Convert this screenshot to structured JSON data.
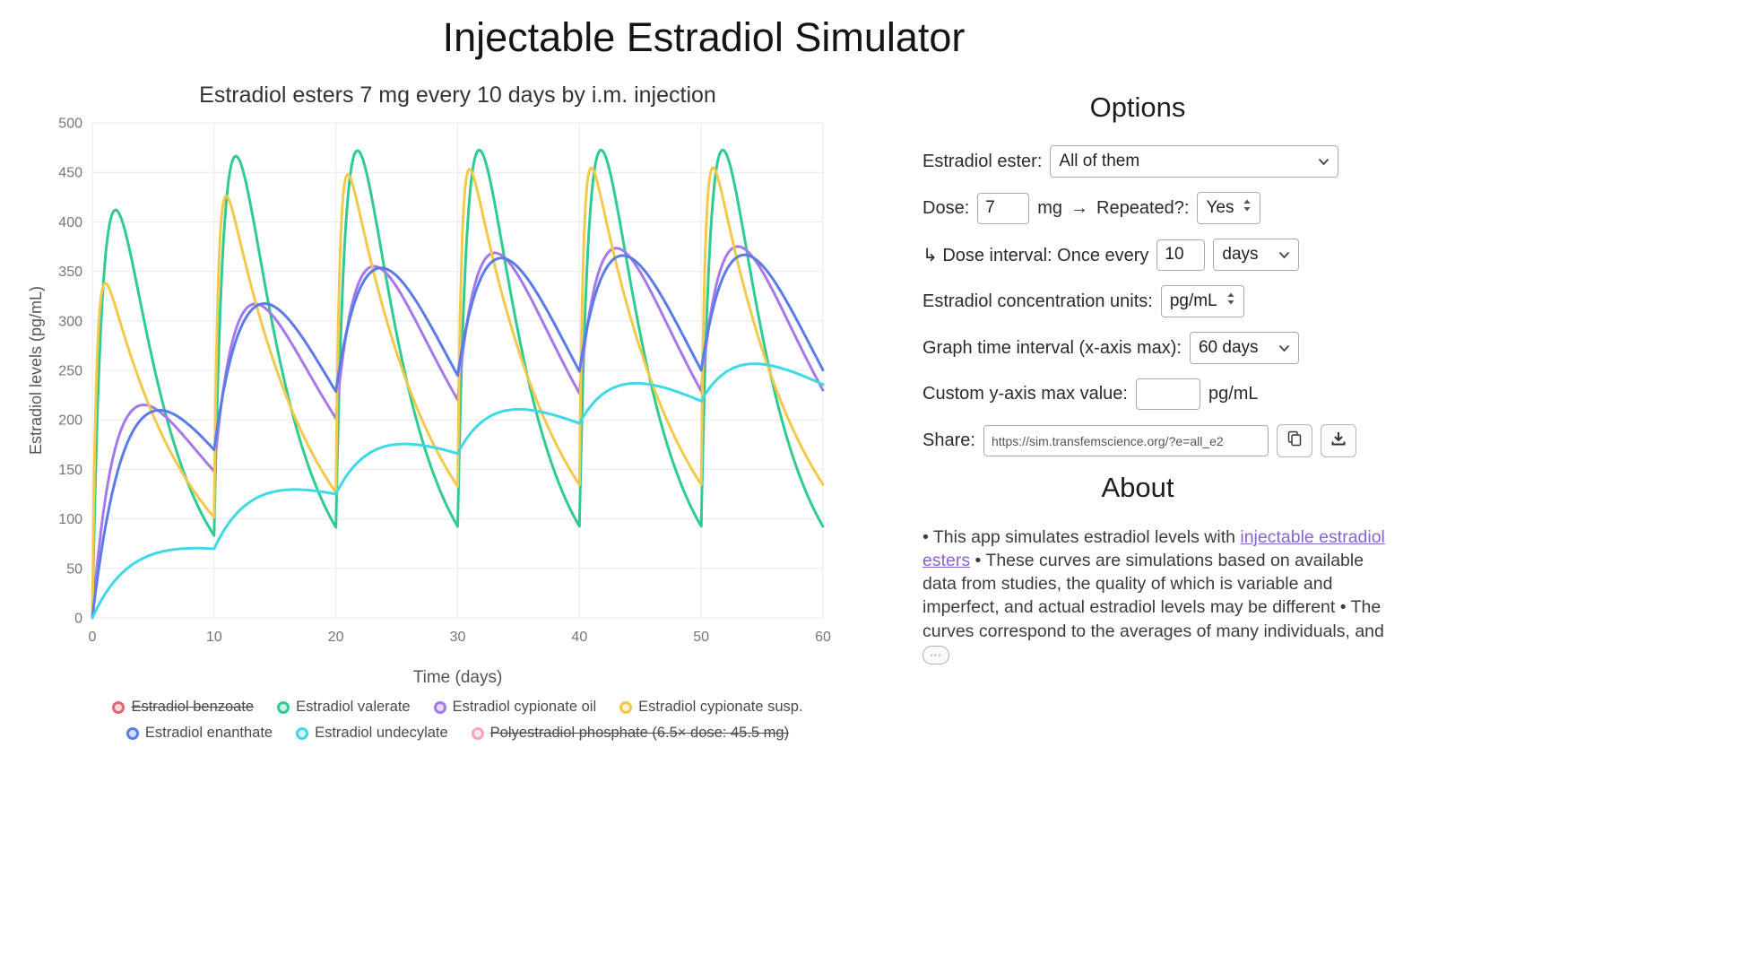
{
  "page": {
    "title": "Injectable Estradiol Simulator"
  },
  "chart_data": {
    "type": "line",
    "title": "Estradiol esters 7 mg every 10 days by i.m. injection",
    "xlabel": "Time (days)",
    "ylabel": "Estradiol levels (pg/mL)",
    "xlim": [
      0,
      60
    ],
    "ylim": [
      0,
      500
    ],
    "x_ticks": [
      0,
      10,
      20,
      30,
      40,
      50,
      60
    ],
    "y_ticks": [
      0,
      50,
      100,
      150,
      200,
      250,
      300,
      350,
      400,
      450,
      500
    ],
    "grid": true,
    "legend_position": "bottom",
    "dose_mg": 7,
    "interval_days": 10,
    "dose_times": [
      0,
      10,
      20,
      30,
      40,
      50
    ],
    "sample_step_days": 0.1,
    "series": [
      {
        "name": "Estradiol benzoate",
        "color": "#e4646f",
        "enabled": false
      },
      {
        "name": "Estradiol valerate",
        "color": "#2ecc8f",
        "enabled": true,
        "model": {
          "k1": 0.23,
          "k2": 1.0,
          "scale": 830
        },
        "observed": {
          "first_peak": 412,
          "first_peak_day": 2,
          "steady_peak": 466,
          "trough_day10": 85,
          "end_day60": 90
        }
      },
      {
        "name": "Estradiol cypionate oil",
        "color": "#a678ea",
        "enabled": true,
        "model": {
          "k1": 0.105,
          "k2": 0.45,
          "scale": 437
        },
        "observed": {
          "first_peak": 215,
          "first_peak_day": 4.5,
          "steady_peak": 362,
          "trough_day10": 143,
          "end_day60": 225
        }
      },
      {
        "name": "Estradiol cypionate susp.",
        "color": "#f2c94c",
        "enabled": true,
        "model": {
          "k1": 0.14,
          "k2": 3.0,
          "scale": 412
        },
        "observed": {
          "first_peak": 338,
          "first_peak_day": 1,
          "steady_peak": 460,
          "trough_day10": 110,
          "end_day60": 145
        }
      },
      {
        "name": "Estradiol enanthate",
        "color": "#5b7ce6",
        "enabled": true,
        "model": {
          "k1": 0.14,
          "k2": 0.23,
          "scale": 1160
        },
        "observed": {
          "first_peak": 222,
          "first_peak_day": 6.5,
          "steady_peak": 348,
          "trough_day10": 185,
          "end_day60": 252
        }
      },
      {
        "name": "Estradiol undecylate",
        "color": "#3fd8e8",
        "enabled": true,
        "model": {
          "k1": 0.03,
          "k2": 0.3,
          "scale": 101
        },
        "observed": {
          "day10": 70,
          "cycle2_max": 130,
          "cycle4_max": 208,
          "steady_max": 252,
          "end_day60": 233
        }
      },
      {
        "name": "Polyestradiol phosphate (6.5× dose: 45.5 mg)",
        "color": "#f4a6c0",
        "enabled": false
      }
    ]
  },
  "options": {
    "heading": "Options",
    "ester_label": "Estradiol ester:",
    "ester_value": "All of them",
    "dose_label": "Dose:",
    "dose_value": "7",
    "dose_unit": "mg",
    "arrow": "→",
    "repeated_label": "Repeated?:",
    "repeated_value": "Yes",
    "interval_label": "↳ Dose interval: Once every",
    "interval_value": "10",
    "interval_unit": "days",
    "units_label": "Estradiol concentration units:",
    "units_value": "pg/mL",
    "graph_label": "Graph time interval (x-axis max):",
    "graph_value": "60 days",
    "ymax_label": "Custom y-axis max value:",
    "ymax_value": "",
    "ymax_unit": "pg/mL",
    "share_label": "Share:",
    "share_value": "https://sim.transfemscience.org/?e=all_e2"
  },
  "about": {
    "heading": "About",
    "p1": "• This app simulates estradiol levels with ",
    "link_text": "injectable estradiol esters",
    "p2": " • These curves are simulations based on available data from studies, the quality of which is variable and imperfect, and actual estradiol levels may be different • The curves correspond to the averages of many individuals, and ",
    "more_label": "⋯"
  }
}
